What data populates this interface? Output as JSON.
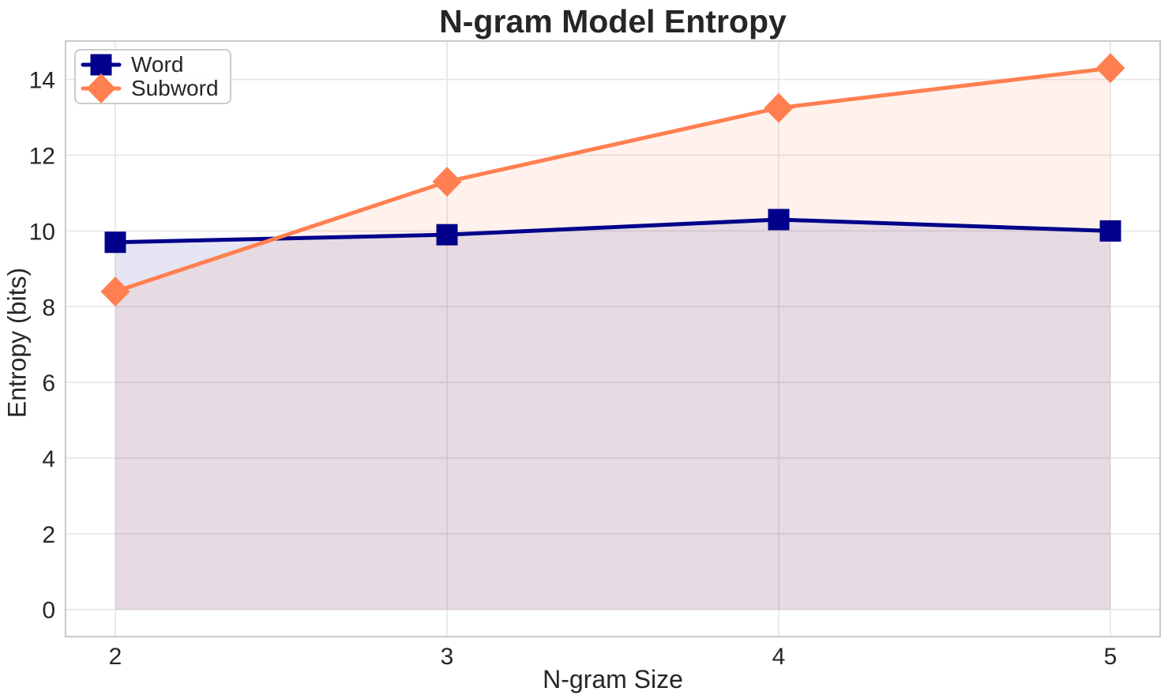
{
  "chart_data": {
    "type": "line",
    "title": "N-gram Model Entropy",
    "xlabel": "N-gram Size",
    "ylabel": "Entropy (bits)",
    "x": [
      2,
      3,
      4,
      5
    ],
    "series": [
      {
        "name": "Word",
        "values": [
          9.7,
          9.9,
          10.3,
          10.0
        ],
        "color": "#00008B",
        "marker": "square",
        "fill_to_zero": true
      },
      {
        "name": "Subword",
        "values": [
          8.4,
          11.3,
          13.25,
          14.3
        ],
        "color": "#FF7F50",
        "marker": "diamond",
        "fill_to_zero": true
      }
    ],
    "xticks": [
      2,
      3,
      4,
      5
    ],
    "yticks": [
      0,
      2,
      4,
      6,
      8,
      10,
      12,
      14
    ],
    "xlim": [
      1.85,
      5.15
    ],
    "ylim": [
      -0.715,
      15.015
    ],
    "grid": true,
    "legend_position": "upper left",
    "fill_alpha": 0.1,
    "line_width": 5,
    "grid_color": "#E7E7E7",
    "spine_color": "#CBCBCB",
    "text_color": "#262626"
  }
}
